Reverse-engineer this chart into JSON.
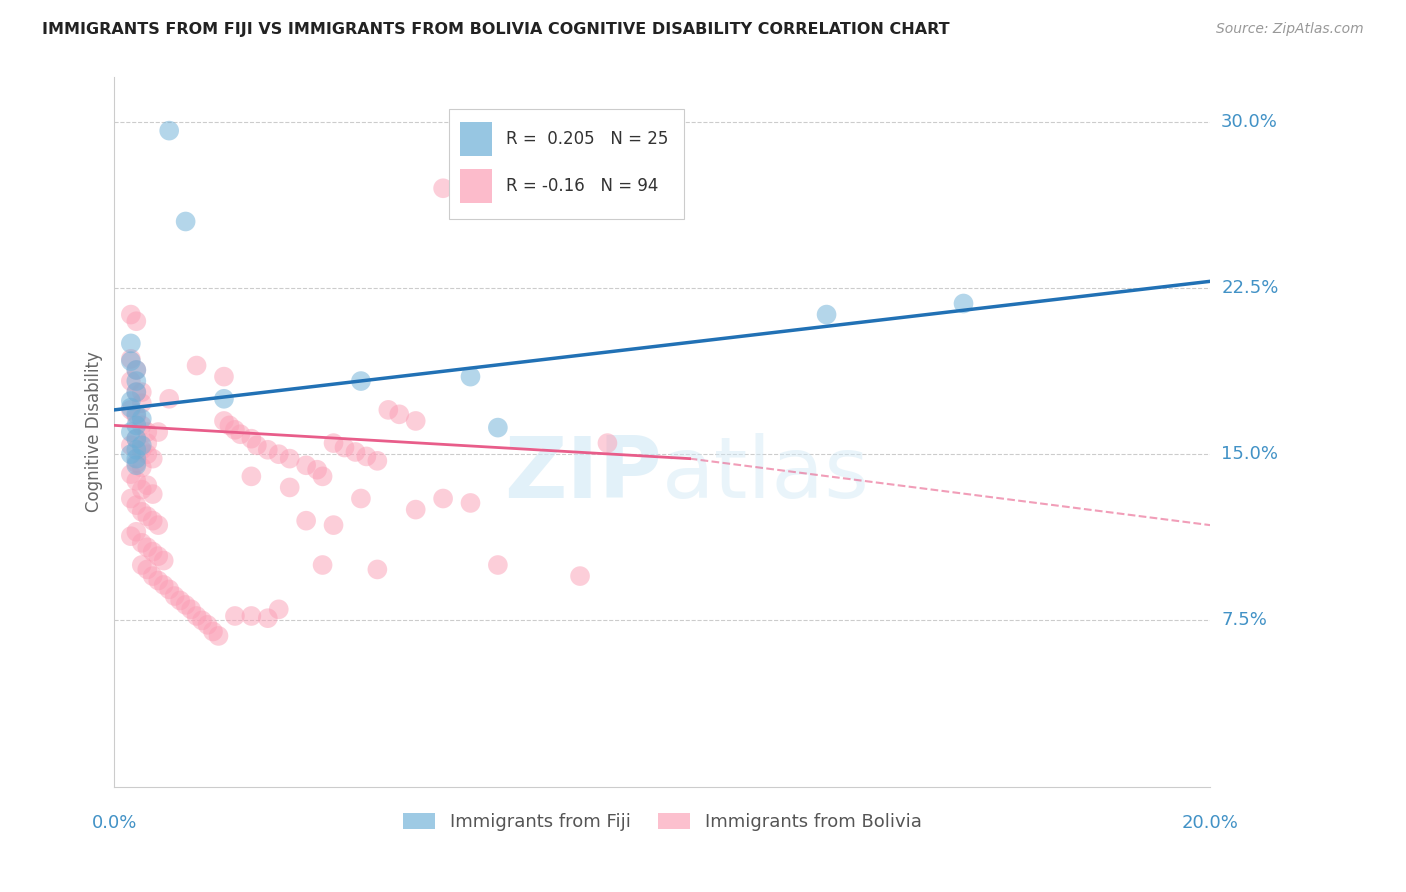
{
  "title": "IMMIGRANTS FROM FIJI VS IMMIGRANTS FROM BOLIVIA COGNITIVE DISABILITY CORRELATION CHART",
  "source": "Source: ZipAtlas.com",
  "ylabel": "Cognitive Disability",
  "watermark": "ZIPatlas",
  "xlim": [
    0.0,
    0.2
  ],
  "ylim": [
    0.0,
    0.32
  ],
  "yticks": [
    0.075,
    0.15,
    0.225,
    0.3
  ],
  "yticklabels": [
    "7.5%",
    "15.0%",
    "22.5%",
    "30.0%"
  ],
  "fiji_R": 0.205,
  "fiji_N": 25,
  "bolivia_R": -0.16,
  "bolivia_N": 94,
  "fiji_color": "#6baed6",
  "bolivia_color": "#fb9eb5",
  "fiji_line_color": "#2171b5",
  "bolivia_line_color": "#e85d8a",
  "grid_color": "#cccccc",
  "right_label_color": "#4292c6",
  "legend_text_color": "#333333",
  "fiji_line": [
    [
      0.0,
      0.17
    ],
    [
      0.2,
      0.228
    ]
  ],
  "bolivia_line_solid": [
    [
      0.0,
      0.163
    ],
    [
      0.105,
      0.148
    ]
  ],
  "bolivia_line_dashed": [
    [
      0.105,
      0.148
    ],
    [
      0.2,
      0.118
    ]
  ],
  "fiji_scatter": [
    [
      0.01,
      0.296
    ],
    [
      0.013,
      0.255
    ],
    [
      0.003,
      0.2
    ],
    [
      0.003,
      0.192
    ],
    [
      0.004,
      0.188
    ],
    [
      0.004,
      0.183
    ],
    [
      0.004,
      0.178
    ],
    [
      0.003,
      0.174
    ],
    [
      0.003,
      0.171
    ],
    [
      0.004,
      0.168
    ],
    [
      0.005,
      0.166
    ],
    [
      0.004,
      0.163
    ],
    [
      0.003,
      0.16
    ],
    [
      0.004,
      0.157
    ],
    [
      0.005,
      0.154
    ],
    [
      0.004,
      0.152
    ],
    [
      0.003,
      0.15
    ],
    [
      0.004,
      0.148
    ],
    [
      0.004,
      0.145
    ],
    [
      0.02,
      0.175
    ],
    [
      0.045,
      0.183
    ],
    [
      0.065,
      0.185
    ],
    [
      0.07,
      0.162
    ],
    [
      0.13,
      0.213
    ],
    [
      0.155,
      0.218
    ]
  ],
  "bolivia_scatter": [
    [
      0.003,
      0.213
    ],
    [
      0.004,
      0.21
    ],
    [
      0.003,
      0.193
    ],
    [
      0.004,
      0.188
    ],
    [
      0.003,
      0.183
    ],
    [
      0.004,
      0.178
    ],
    [
      0.005,
      0.173
    ],
    [
      0.003,
      0.17
    ],
    [
      0.004,
      0.167
    ],
    [
      0.005,
      0.163
    ],
    [
      0.006,
      0.16
    ],
    [
      0.004,
      0.157
    ],
    [
      0.003,
      0.154
    ],
    [
      0.005,
      0.152
    ],
    [
      0.006,
      0.15
    ],
    [
      0.007,
      0.148
    ],
    [
      0.004,
      0.146
    ],
    [
      0.005,
      0.144
    ],
    [
      0.003,
      0.141
    ],
    [
      0.004,
      0.138
    ],
    [
      0.006,
      0.136
    ],
    [
      0.005,
      0.134
    ],
    [
      0.007,
      0.132
    ],
    [
      0.003,
      0.13
    ],
    [
      0.004,
      0.127
    ],
    [
      0.005,
      0.124
    ],
    [
      0.006,
      0.122
    ],
    [
      0.007,
      0.12
    ],
    [
      0.008,
      0.118
    ],
    [
      0.004,
      0.115
    ],
    [
      0.003,
      0.113
    ],
    [
      0.005,
      0.11
    ],
    [
      0.006,
      0.108
    ],
    [
      0.007,
      0.106
    ],
    [
      0.008,
      0.104
    ],
    [
      0.009,
      0.102
    ],
    [
      0.005,
      0.1
    ],
    [
      0.006,
      0.098
    ],
    [
      0.007,
      0.095
    ],
    [
      0.008,
      0.093
    ],
    [
      0.009,
      0.091
    ],
    [
      0.01,
      0.089
    ],
    [
      0.011,
      0.086
    ],
    [
      0.012,
      0.084
    ],
    [
      0.013,
      0.082
    ],
    [
      0.014,
      0.08
    ],
    [
      0.015,
      0.077
    ],
    [
      0.016,
      0.075
    ],
    [
      0.017,
      0.073
    ],
    [
      0.018,
      0.07
    ],
    [
      0.019,
      0.068
    ],
    [
      0.02,
      0.165
    ],
    [
      0.021,
      0.163
    ],
    [
      0.022,
      0.161
    ],
    [
      0.023,
      0.159
    ],
    [
      0.025,
      0.157
    ],
    [
      0.026,
      0.154
    ],
    [
      0.028,
      0.152
    ],
    [
      0.03,
      0.15
    ],
    [
      0.032,
      0.148
    ],
    [
      0.035,
      0.145
    ],
    [
      0.037,
      0.143
    ],
    [
      0.038,
      0.14
    ],
    [
      0.04,
      0.155
    ],
    [
      0.042,
      0.153
    ],
    [
      0.044,
      0.151
    ],
    [
      0.046,
      0.149
    ],
    [
      0.048,
      0.147
    ],
    [
      0.05,
      0.17
    ],
    [
      0.052,
      0.168
    ],
    [
      0.055,
      0.165
    ],
    [
      0.06,
      0.13
    ],
    [
      0.065,
      0.128
    ],
    [
      0.035,
      0.12
    ],
    [
      0.04,
      0.118
    ],
    [
      0.022,
      0.077
    ],
    [
      0.028,
      0.076
    ],
    [
      0.06,
      0.27
    ],
    [
      0.025,
      0.077
    ],
    [
      0.07,
      0.1
    ],
    [
      0.085,
      0.095
    ],
    [
      0.09,
      0.155
    ],
    [
      0.03,
      0.08
    ],
    [
      0.02,
      0.185
    ],
    [
      0.015,
      0.19
    ],
    [
      0.01,
      0.175
    ],
    [
      0.008,
      0.16
    ],
    [
      0.006,
      0.155
    ],
    [
      0.005,
      0.178
    ],
    [
      0.045,
      0.13
    ],
    [
      0.055,
      0.125
    ],
    [
      0.038,
      0.1
    ],
    [
      0.048,
      0.098
    ],
    [
      0.032,
      0.135
    ],
    [
      0.025,
      0.14
    ]
  ]
}
